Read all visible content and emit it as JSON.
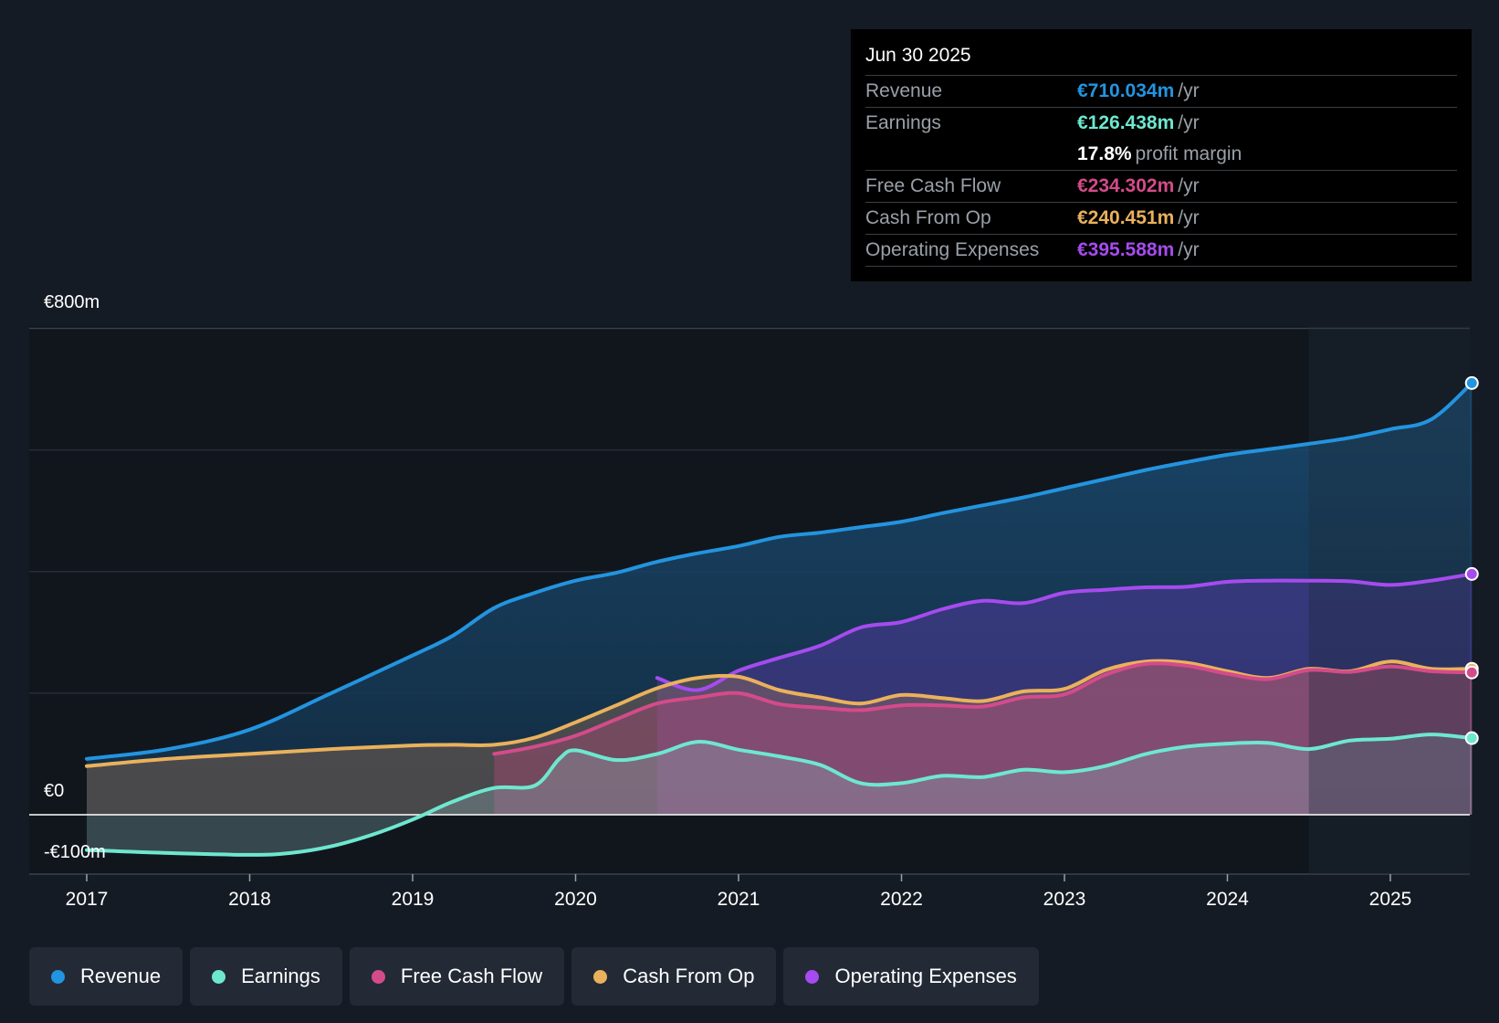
{
  "tooltip": {
    "date": "Jun 30 2025",
    "rows": [
      {
        "label": "Revenue",
        "value": "€710.034m",
        "unit": "/yr",
        "color": "#2394df"
      },
      {
        "label": "Earnings",
        "value": "€126.438m",
        "unit": "/yr",
        "color": "#6ee7cf"
      },
      {
        "margin_value": "17.8%",
        "margin_text": "profit margin"
      },
      {
        "label": "Free Cash Flow",
        "value": "€234.302m",
        "unit": "/yr",
        "color": "#d44b8a"
      },
      {
        "label": "Cash From Op",
        "value": "€240.451m",
        "unit": "/yr",
        "color": "#eab15c"
      },
      {
        "label": "Operating Expenses",
        "value": "€395.588m",
        "unit": "/yr",
        "color": "#a64bef"
      }
    ]
  },
  "legend": [
    {
      "label": "Revenue",
      "color": "#2394df"
    },
    {
      "label": "Earnings",
      "color": "#6ee7cf"
    },
    {
      "label": "Free Cash Flow",
      "color": "#d44b8a"
    },
    {
      "label": "Cash From Op",
      "color": "#eab15c"
    },
    {
      "label": "Operating Expenses",
      "color": "#a64bef"
    }
  ],
  "chart_data": {
    "type": "area",
    "title": "",
    "xlabel": "",
    "ylabel": "",
    "ylim": [
      -100,
      800
    ],
    "xlim": [
      2017.0,
      2025.5
    ],
    "y_tick_labels": [
      {
        "value": 800,
        "label": "€800m"
      },
      {
        "value": 0,
        "label": "€0"
      },
      {
        "value": -100,
        "label": "-€100m"
      }
    ],
    "x_ticks": [
      2017,
      2018,
      2019,
      2020,
      2021,
      2022,
      2023,
      2024,
      2025
    ],
    "x_tick_labels": [
      "2017",
      "2018",
      "2019",
      "2020",
      "2021",
      "2022",
      "2023",
      "2024",
      "2025"
    ],
    "gridlines_y": [
      0,
      200,
      400,
      600,
      800
    ],
    "highlight_from": 2024.5,
    "series": [
      {
        "name": "Revenue",
        "color": "#2394df",
        "x": [
          2017.0,
          2017.5,
          2018.0,
          2018.5,
          2019.0,
          2019.25,
          2019.5,
          2019.75,
          2020.0,
          2020.25,
          2020.5,
          2020.75,
          2021.0,
          2021.25,
          2021.5,
          2021.75,
          2022.0,
          2022.25,
          2022.5,
          2022.75,
          2023.0,
          2023.25,
          2023.5,
          2023.75,
          2024.0,
          2024.25,
          2024.5,
          2024.75,
          2025.0,
          2025.25,
          2025.5
        ],
        "values": [
          92,
          108,
          140,
          200,
          262,
          295,
          340,
          365,
          385,
          398,
          416,
          430,
          442,
          457,
          464,
          473,
          482,
          496,
          509,
          522,
          537,
          552,
          567,
          580,
          592,
          601,
          610,
          620,
          634,
          650,
          710
        ]
      },
      {
        "name": "Earnings",
        "color": "#6ee7cf",
        "x": [
          2017.0,
          2017.5,
          2018.0,
          2018.25,
          2018.5,
          2018.75,
          2019.0,
          2019.25,
          2019.5,
          2019.75,
          2019.9,
          2020.0,
          2020.25,
          2020.5,
          2020.75,
          2021.0,
          2021.25,
          2021.5,
          2021.75,
          2022.0,
          2022.25,
          2022.5,
          2022.75,
          2023.0,
          2023.25,
          2023.5,
          2023.75,
          2024.0,
          2024.25,
          2024.5,
          2024.75,
          2025.0,
          2025.25,
          2025.5
        ],
        "values": [
          -58,
          -63,
          -66,
          -63,
          -52,
          -33,
          -8,
          22,
          44,
          48,
          92,
          106,
          90,
          100,
          120,
          107,
          96,
          82,
          52,
          52,
          64,
          62,
          74,
          70,
          80,
          100,
          112,
          117,
          118,
          108,
          122,
          125,
          132,
          126
        ]
      },
      {
        "name": "Free Cash Flow",
        "color": "#d44b8a",
        "x": [
          2019.5,
          2019.75,
          2020.0,
          2020.25,
          2020.5,
          2020.75,
          2021.0,
          2021.25,
          2021.5,
          2021.75,
          2022.0,
          2022.25,
          2022.5,
          2022.75,
          2023.0,
          2023.25,
          2023.5,
          2023.75,
          2024.0,
          2024.25,
          2024.5,
          2024.75,
          2025.0,
          2025.25,
          2025.5
        ],
        "values": [
          100,
          112,
          130,
          157,
          183,
          193,
          200,
          182,
          176,
          172,
          180,
          180,
          178,
          193,
          198,
          230,
          248,
          245,
          232,
          223,
          238,
          235,
          244,
          236,
          234
        ]
      },
      {
        "name": "Cash From Op",
        "color": "#eab15c",
        "x": [
          2017.0,
          2017.5,
          2018.0,
          2018.5,
          2019.0,
          2019.25,
          2019.5,
          2019.75,
          2020.0,
          2020.25,
          2020.5,
          2020.75,
          2021.0,
          2021.25,
          2021.5,
          2021.75,
          2022.0,
          2022.25,
          2022.5,
          2022.75,
          2023.0,
          2023.25,
          2023.5,
          2023.75,
          2024.0,
          2024.25,
          2024.5,
          2024.75,
          2025.0,
          2025.25,
          2025.5
        ],
        "values": [
          80,
          92,
          100,
          108,
          114,
          115,
          115,
          127,
          152,
          180,
          208,
          225,
          227,
          205,
          193,
          183,
          197,
          192,
          187,
          203,
          207,
          238,
          252,
          250,
          236,
          225,
          240,
          236,
          252,
          240,
          240
        ]
      },
      {
        "name": "Operating Expenses",
        "color": "#a64bef",
        "x": [
          2020.5,
          2020.75,
          2021.0,
          2021.25,
          2021.5,
          2021.75,
          2022.0,
          2022.25,
          2022.5,
          2022.75,
          2023.0,
          2023.25,
          2023.5,
          2023.75,
          2024.0,
          2024.25,
          2024.5,
          2024.75,
          2025.0,
          2025.25,
          2025.5
        ],
        "values": [
          225,
          205,
          237,
          258,
          278,
          308,
          317,
          338,
          352,
          348,
          365,
          370,
          374,
          375,
          383,
          385,
          385,
          384,
          378,
          385,
          396
        ]
      }
    ]
  }
}
